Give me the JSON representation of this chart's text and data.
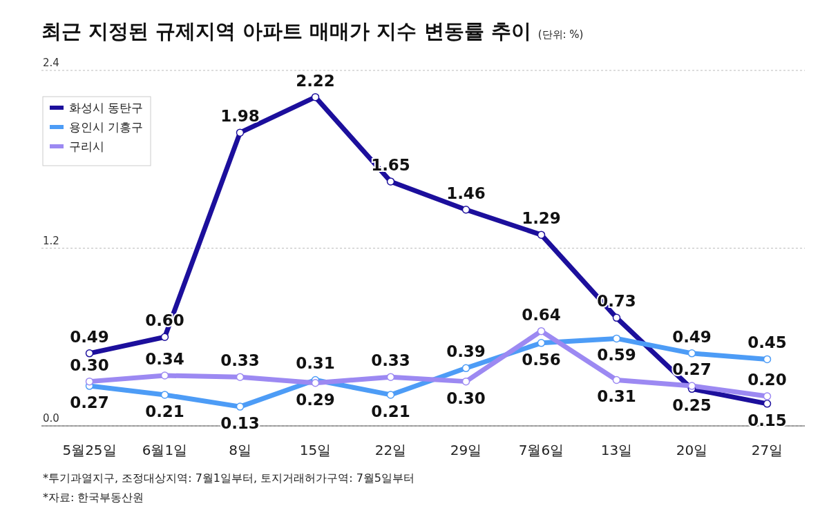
{
  "chart_data": {
    "type": "line",
    "title": "최근 지정된 규제지역 아파트 매매가 지수 변동률 추이",
    "subtitle": "(단위: %)",
    "categories": [
      "5월25일",
      "6월1일",
      "8일",
      "15일",
      "22일",
      "29일",
      "7월6일",
      "13일",
      "20일",
      "27일"
    ],
    "series": [
      {
        "name": "화성시 동탄구",
        "color": "#1c0f9c",
        "values": [
          0.49,
          0.6,
          1.98,
          2.22,
          1.65,
          1.46,
          1.29,
          0.73,
          0.25,
          0.15
        ],
        "value_labels": [
          "0.49",
          "0.60",
          "1.98",
          "2.22",
          "1.65",
          "1.46",
          "1.29",
          "0.73",
          "0.25",
          "0.15"
        ]
      },
      {
        "name": "용인시 기흥구",
        "color": "#4d9cf6",
        "values": [
          0.27,
          0.21,
          0.13,
          0.31,
          0.21,
          0.39,
          0.56,
          0.59,
          0.49,
          0.45
        ],
        "value_labels": [
          "0.27",
          "0.21",
          "0.13",
          "0.31",
          "0.21",
          "0.39",
          "0.56",
          "0.59",
          "0.49",
          "0.45"
        ]
      },
      {
        "name": "구리시",
        "color": "#9c89f2",
        "values": [
          0.3,
          0.34,
          0.33,
          0.29,
          0.33,
          0.3,
          0.64,
          0.31,
          0.27,
          0.2
        ],
        "value_labels": [
          "0.30",
          "0.34",
          "0.33",
          "0.29",
          "0.33",
          "0.30",
          "0.64",
          "0.31",
          "0.27",
          "0.20"
        ]
      }
    ],
    "ylim": [
      0,
      2.4
    ],
    "yticks": [
      {
        "value": 0,
        "label": "0.0"
      },
      {
        "value": 1.2,
        "label": "1.2"
      },
      {
        "value": 2.4,
        "label": "2.4"
      }
    ],
    "grid": "y",
    "legend": "top left",
    "marker": "circle",
    "line_style": "solid",
    "annotations": [
      "*투기과열지구, 조정대상지역: 7월1일부터, 토지거래허가구역: 7월5일부터",
      "*자료: 한국부동산원"
    ]
  }
}
